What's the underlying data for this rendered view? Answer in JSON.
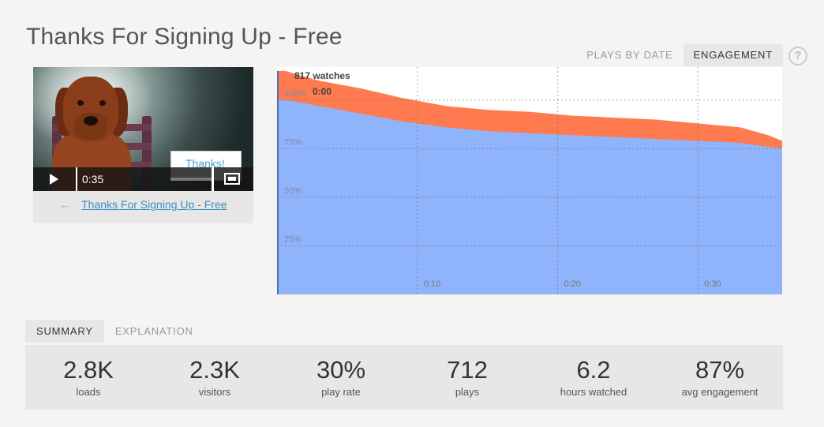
{
  "page": {
    "title": "Thanks For Signing Up - Free"
  },
  "top_tabs": [
    {
      "label": "PLAYS BY DATE",
      "active": false
    },
    {
      "label": "ENGAGEMENT",
      "active": true
    }
  ],
  "help": {
    "glyph": "?"
  },
  "video": {
    "overlay_text": "Thanks!",
    "time": "0:35",
    "back_link": "Thanks For Signing Up - Free",
    "back_arrow": "←"
  },
  "chart_data": {
    "type": "area",
    "title": "",
    "annotation_count": "817 watches",
    "annotation_time": "0:00",
    "x_ticks": [
      "0:10",
      "0:20",
      "0:30"
    ],
    "y_ticks": [
      "25%",
      "50%",
      "75%",
      "100%"
    ],
    "xlim": [
      0,
      36
    ],
    "ylim": [
      0,
      117
    ],
    "series": [
      {
        "color": "#ff7b4f",
        "x": [
          0,
          0.6,
          1.5,
          3,
          6,
          9,
          12,
          15,
          18,
          21,
          24,
          27,
          30,
          33,
          35,
          36
        ],
        "values": [
          115,
          115,
          113,
          110,
          106,
          101,
          97,
          95,
          94,
          92,
          91,
          90,
          88,
          86,
          82,
          79
        ]
      },
      {
        "color": "#90b4fb",
        "x": [
          0,
          0.6,
          1.5,
          3,
          6,
          9,
          12,
          15,
          18,
          21,
          24,
          27,
          30,
          33,
          35,
          36
        ],
        "values": [
          100,
          100,
          99,
          97,
          93,
          89,
          86,
          84,
          83,
          82,
          81,
          80,
          79,
          78,
          76,
          75
        ]
      }
    ],
    "grid": true,
    "accent_color": "#ff7b4f"
  },
  "bottom_tabs": [
    {
      "label": "SUMMARY",
      "active": true
    },
    {
      "label": "EXPLANATION",
      "active": false
    }
  ],
  "summary": [
    {
      "value": "2.8K",
      "label": "loads"
    },
    {
      "value": "2.3K",
      "label": "visitors"
    },
    {
      "value": "30%",
      "label": "play rate"
    },
    {
      "value": "712",
      "label": "plays"
    },
    {
      "value": "6.2",
      "label": "hours watched"
    },
    {
      "value": "87%",
      "label": "avg engagement"
    }
  ]
}
